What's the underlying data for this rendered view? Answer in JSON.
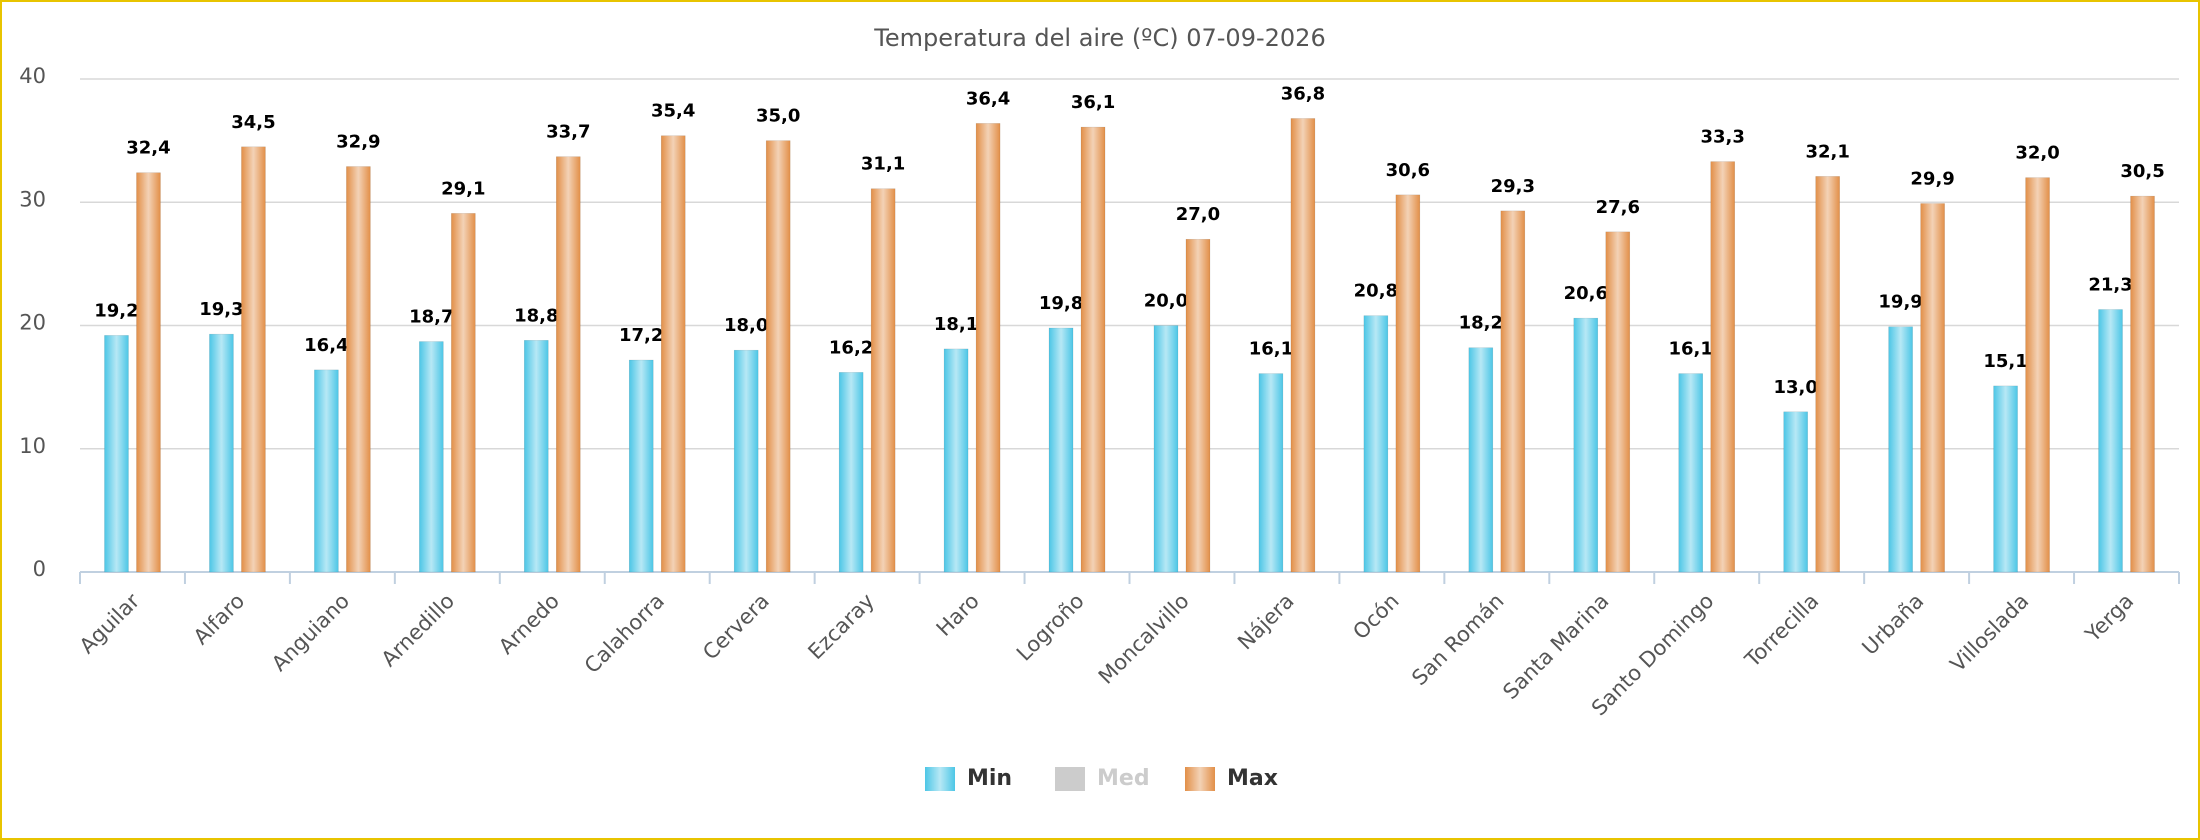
{
  "chart_data": {
    "type": "bar",
    "title": "Temperatura del aire (ºC) 07-09-2026",
    "categories": [
      "Aguilar",
      "Alfaro",
      "Anguiano",
      "Arnedillo",
      "Arnedo",
      "Calahorra",
      "Cervera",
      "Ezcaray",
      "Haro",
      "Logroño",
      "Moncalvillo",
      "Nájera",
      "Ocón",
      "San Román",
      "Santa Marina",
      "Santo Domingo",
      "Torrecilla",
      "Urbaña",
      "Villoslada",
      "Yerga"
    ],
    "series": [
      {
        "name": "Min",
        "color": "#4cc6e6",
        "visible": true,
        "values": [
          19.2,
          19.3,
          16.4,
          18.7,
          18.8,
          17.2,
          18.0,
          16.2,
          18.1,
          19.8,
          20.0,
          16.1,
          20.8,
          18.2,
          20.6,
          16.1,
          13.0,
          19.9,
          15.1,
          21.3
        ],
        "value_labels": [
          "19,2",
          "19,3",
          "16,4",
          "18,7",
          "18,8",
          "17,2",
          "18,0",
          "16,2",
          "18,1",
          "19,8",
          "20,0",
          "16,1",
          "20,8",
          "18,2",
          "20,6",
          "16,1",
          "13,0",
          "19,9",
          "15,1",
          "21,3"
        ]
      },
      {
        "name": "Med",
        "color": "#cccccc",
        "visible": false,
        "values": [
          null,
          null,
          null,
          null,
          null,
          null,
          null,
          null,
          null,
          null,
          null,
          null,
          null,
          null,
          null,
          null,
          null,
          null,
          null,
          null
        ]
      },
      {
        "name": "Max",
        "color": "#e28f48",
        "visible": true,
        "values": [
          32.4,
          34.5,
          32.9,
          29.1,
          33.7,
          35.4,
          35.0,
          31.1,
          36.4,
          36.1,
          27.0,
          36.8,
          30.6,
          29.3,
          27.6,
          33.3,
          32.1,
          29.9,
          32.0,
          30.5
        ],
        "value_labels": [
          "32,4",
          "34,5",
          "32,9",
          "29,1",
          "33,7",
          "35,4",
          "35,0",
          "31,1",
          "36,4",
          "36,1",
          "27,0",
          "36,8",
          "30,6",
          "29,3",
          "27,6",
          "33,3",
          "32,1",
          "29,9",
          "32,0",
          "30,5"
        ]
      }
    ],
    "ylim": [
      0,
      40
    ],
    "yticks": [
      0,
      10,
      20,
      30,
      40
    ],
    "grid": true,
    "legend": "bottom"
  }
}
